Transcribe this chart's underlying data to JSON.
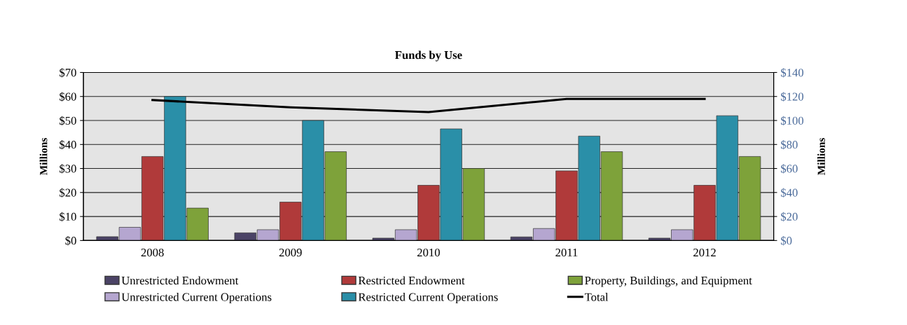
{
  "chart_data": {
    "type": "bar",
    "title": "Funds by Use",
    "ylabel": "Millions",
    "y2label": "Millions",
    "categories": [
      "2008",
      "2009",
      "2010",
      "2011",
      "2012"
    ],
    "series": [
      {
        "name": "Unrestricted Endowment",
        "color": "#4b4366",
        "values": [
          1.6,
          3.2,
          1,
          1.5,
          1
        ]
      },
      {
        "name": "Unrestricted Current Operations",
        "color": "#b5a6d0",
        "values": [
          5.5,
          4.5,
          4.5,
          5,
          4.5
        ]
      },
      {
        "name": "Restricted Endowment",
        "color": "#b03a3a",
        "values": [
          35,
          16,
          23,
          29,
          23
        ]
      },
      {
        "name": "Restricted Current Operations",
        "color": "#2a8fa8",
        "values": [
          60,
          50,
          46.5,
          43.5,
          52
        ]
      },
      {
        "name": "Property, Buildings, and Equipment",
        "color": "#7ea23a",
        "values": [
          13.5,
          37,
          30,
          37,
          35
        ]
      },
      {
        "name": "Total",
        "type": "line",
        "axis": "y2",
        "color": "#000000",
        "values": [
          117,
          111,
          107,
          118,
          118
        ]
      }
    ],
    "ylim": [
      0,
      70
    ],
    "yticks": [
      {
        "value": 0,
        "label": "$0"
      },
      {
        "value": 10,
        "label": "$10"
      },
      {
        "value": 20,
        "label": "$20"
      },
      {
        "value": 30,
        "label": "$30"
      },
      {
        "value": 40,
        "label": "$40"
      },
      {
        "value": 50,
        "label": "$50"
      },
      {
        "value": 60,
        "label": "$60"
      },
      {
        "value": 70,
        "label": "$70"
      }
    ],
    "y2lim": [
      0,
      140
    ],
    "y2ticks": [
      {
        "value": 0,
        "label": "$0"
      },
      {
        "value": 20,
        "label": "$20"
      },
      {
        "value": 40,
        "label": "$40"
      },
      {
        "value": 60,
        "label": "$60"
      },
      {
        "value": 80,
        "label": "$80"
      },
      {
        "value": 100,
        "label": "$100"
      },
      {
        "value": 120,
        "label": "$120"
      },
      {
        "value": 140,
        "label": "$140"
      }
    ],
    "grid": true,
    "legend": "bottom"
  }
}
